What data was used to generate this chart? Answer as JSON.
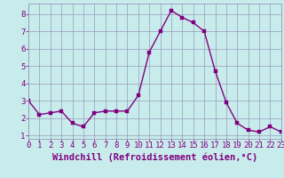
{
  "x": [
    0,
    1,
    2,
    3,
    4,
    5,
    6,
    7,
    8,
    9,
    10,
    11,
    12,
    13,
    14,
    15,
    16,
    17,
    18,
    19,
    20,
    21,
    22,
    23
  ],
  "y": [
    3.0,
    2.2,
    2.3,
    2.4,
    1.7,
    1.5,
    2.3,
    2.4,
    2.4,
    2.4,
    3.3,
    5.8,
    7.0,
    8.2,
    7.8,
    7.5,
    7.0,
    4.7,
    2.9,
    1.7,
    1.3,
    1.2,
    1.5,
    1.2
  ],
  "line_color": "#800080",
  "marker_color": "#800080",
  "bg_color": "#c8ecec",
  "grid_color": "#9999bb",
  "xlabel": "Windchill (Refroidissement éolien,°C)",
  "xlabel_color": "#800080",
  "yticks": [
    1,
    2,
    3,
    4,
    5,
    6,
    7,
    8
  ],
  "xticks": [
    0,
    1,
    2,
    3,
    4,
    5,
    6,
    7,
    8,
    9,
    10,
    11,
    12,
    13,
    14,
    15,
    16,
    17,
    18,
    19,
    20,
    21,
    22,
    23
  ],
  "xlim": [
    0,
    23
  ],
  "ylim": [
    0.8,
    8.6
  ],
  "xlabel_fontsize": 7.5,
  "tick_fontsize": 6.5,
  "linewidth": 1.0,
  "markersize": 2.5
}
